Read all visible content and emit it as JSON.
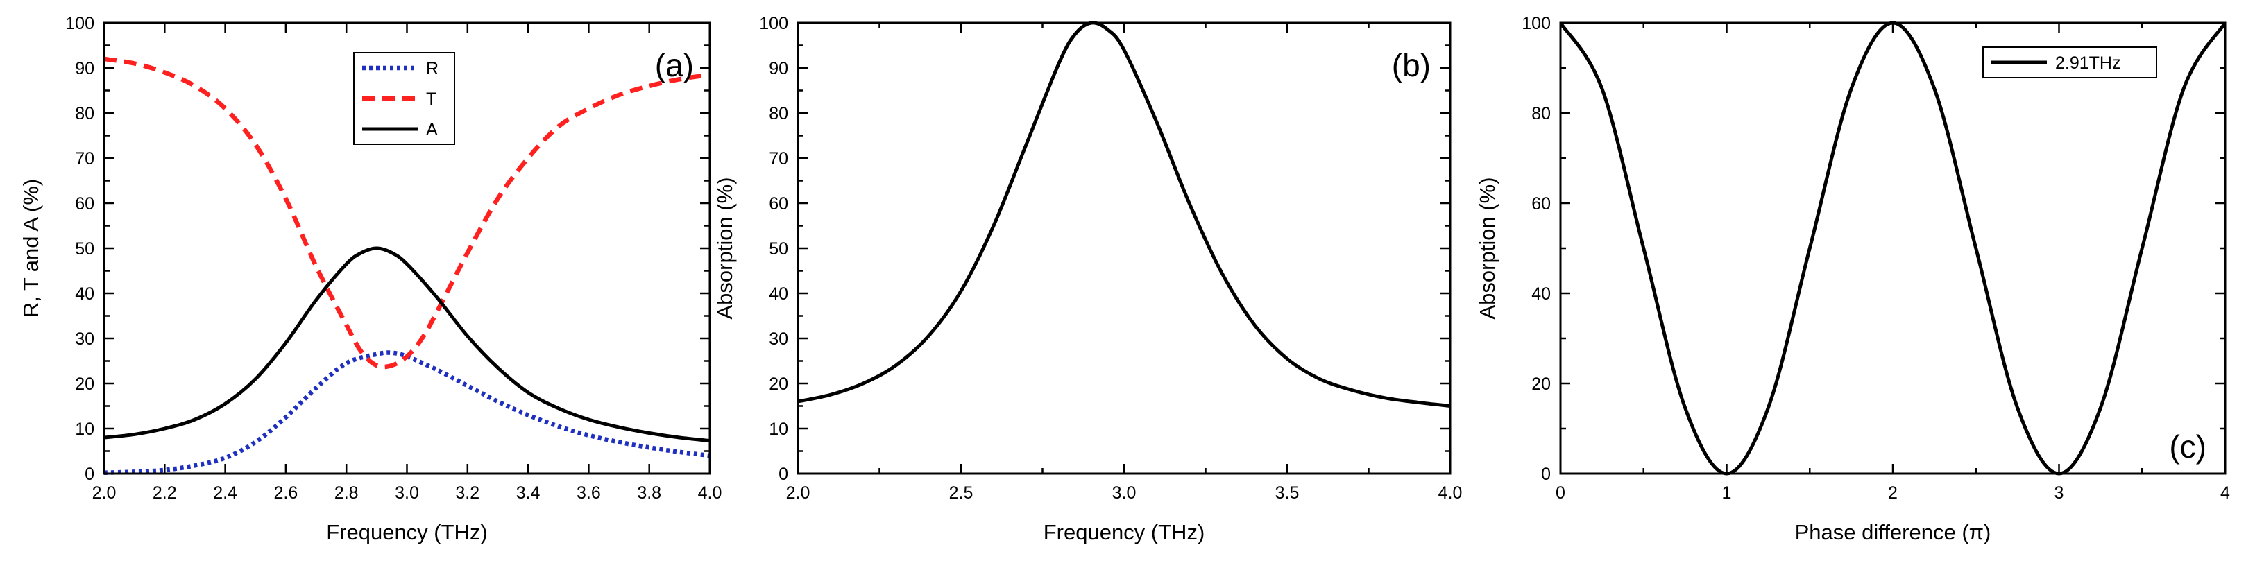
{
  "chart_data": [
    {
      "type": "line",
      "panel_label": "(a)",
      "xlabel": "Frequency (THz)",
      "ylabel": "R, T and A (%)",
      "xlim": [
        2.0,
        4.0
      ],
      "ylim": [
        0,
        100
      ],
      "x_ticks": [
        2.0,
        2.2,
        2.4,
        2.6,
        2.8,
        3.0,
        3.2,
        3.4,
        3.6,
        3.8,
        4.0
      ],
      "x_tick_labels": [
        "2.0",
        "2.2",
        "2.4",
        "2.6",
        "2.8",
        "3.0",
        "3.2",
        "3.4",
        "3.6",
        "3.8",
        "4.0"
      ],
      "y_ticks": [
        0,
        10,
        20,
        30,
        40,
        50,
        60,
        70,
        80,
        90,
        100
      ],
      "y_tick_labels": [
        "0",
        "10",
        "20",
        "30",
        "40",
        "50",
        "60",
        "70",
        "80",
        "90",
        "100"
      ],
      "legend_position": "top-center",
      "series": [
        {
          "name": "R",
          "color": "#1f2fbf",
          "style": "dotted",
          "x": [
            2.0,
            2.1,
            2.2,
            2.3,
            2.4,
            2.5,
            2.6,
            2.7,
            2.8,
            2.9,
            2.95,
            3.0,
            3.1,
            3.2,
            3.3,
            3.4,
            3.5,
            3.6,
            3.7,
            3.8,
            3.9,
            4.0
          ],
          "values": [
            0.2,
            0.4,
            0.8,
            1.8,
            3.5,
            7.0,
            12.5,
            19.0,
            24.5,
            26.5,
            26.8,
            26.0,
            23.0,
            19.5,
            16.0,
            13.0,
            10.5,
            8.5,
            7.0,
            5.8,
            4.8,
            4.0
          ]
        },
        {
          "name": "T",
          "color": "#ff2020",
          "style": "dashed",
          "x": [
            2.0,
            2.1,
            2.2,
            2.3,
            2.4,
            2.5,
            2.6,
            2.7,
            2.8,
            2.85,
            2.9,
            2.95,
            3.0,
            3.05,
            3.1,
            3.2,
            3.3,
            3.4,
            3.5,
            3.6,
            3.7,
            3.8,
            3.9,
            4.0
          ],
          "values": [
            92,
            91,
            89,
            86,
            81,
            73,
            61,
            46,
            33,
            27,
            24,
            24,
            26,
            30,
            36,
            49,
            61,
            70,
            77,
            81,
            84,
            86,
            87.5,
            88.5
          ]
        },
        {
          "name": "A",
          "color": "#000000",
          "style": "solid",
          "x": [
            2.0,
            2.1,
            2.2,
            2.3,
            2.4,
            2.5,
            2.6,
            2.7,
            2.8,
            2.85,
            2.9,
            2.95,
            3.0,
            3.1,
            3.2,
            3.3,
            3.4,
            3.5,
            3.6,
            3.7,
            3.8,
            3.9,
            4.0
          ],
          "values": [
            8.0,
            8.7,
            10.0,
            12.0,
            15.5,
            21.0,
            29.0,
            38.5,
            46.5,
            49.0,
            50.0,
            49.0,
            46.5,
            39.0,
            30.5,
            23.5,
            18.0,
            14.5,
            12.0,
            10.3,
            9.0,
            8.0,
            7.3
          ]
        }
      ]
    },
    {
      "type": "line",
      "panel_label": "(b)",
      "xlabel": "Frequency (THz)",
      "ylabel": "Absorption (%)",
      "xlim": [
        2.0,
        4.0
      ],
      "ylim": [
        0,
        100
      ],
      "x_ticks": [
        2.0,
        2.5,
        3.0,
        3.5,
        4.0
      ],
      "x_tick_labels": [
        "2.0",
        "2.5",
        "3.0",
        "3.5",
        "4.0"
      ],
      "y_ticks": [
        0,
        10,
        20,
        30,
        40,
        50,
        60,
        70,
        80,
        90,
        100
      ],
      "y_tick_labels": [
        "0",
        "10",
        "20",
        "30",
        "40",
        "50",
        "60",
        "70",
        "80",
        "90",
        "100"
      ],
      "series": [
        {
          "color": "#000000",
          "style": "solid",
          "x": [
            2.0,
            2.1,
            2.2,
            2.3,
            2.4,
            2.5,
            2.6,
            2.7,
            2.8,
            2.85,
            2.9,
            2.95,
            3.0,
            3.1,
            3.2,
            3.3,
            3.4,
            3.5,
            3.6,
            3.7,
            3.8,
            3.9,
            4.0
          ],
          "values": [
            16.0,
            17.5,
            20.0,
            24.0,
            30.5,
            40.5,
            55.0,
            73.0,
            91.0,
            97.5,
            100.0,
            98.5,
            94.0,
            78.0,
            60.0,
            44.5,
            33.0,
            25.5,
            21.0,
            18.5,
            16.8,
            15.8,
            15.0
          ]
        }
      ]
    },
    {
      "type": "line",
      "panel_label": "(c)",
      "xlabel": "Phase difference (π)",
      "ylabel": "Absorption (%)",
      "xlim": [
        0,
        4
      ],
      "ylim": [
        0,
        100
      ],
      "x_ticks": [
        0,
        1,
        2,
        3,
        4
      ],
      "x_tick_labels": [
        "0",
        "1",
        "2",
        "3",
        "4"
      ],
      "y_ticks": [
        0,
        20,
        40,
        60,
        80,
        100
      ],
      "y_tick_labels": [
        "0",
        "20",
        "40",
        "60",
        "80",
        "100"
      ],
      "legend_position": "top-right",
      "series": [
        {
          "name": "2.91THz",
          "color": "#000000",
          "style": "solid",
          "x": [
            0,
            0.25,
            0.5,
            0.75,
            1.0,
            1.25,
            1.5,
            1.75,
            2.0,
            2.25,
            2.5,
            2.75,
            3.0,
            3.25,
            3.5,
            3.75,
            4.0
          ],
          "values": [
            100,
            85.4,
            50,
            14.6,
            0,
            14.6,
            50,
            85.4,
            100,
            85.4,
            50,
            14.6,
            0,
            14.6,
            50,
            85.4,
            100
          ]
        }
      ]
    }
  ]
}
